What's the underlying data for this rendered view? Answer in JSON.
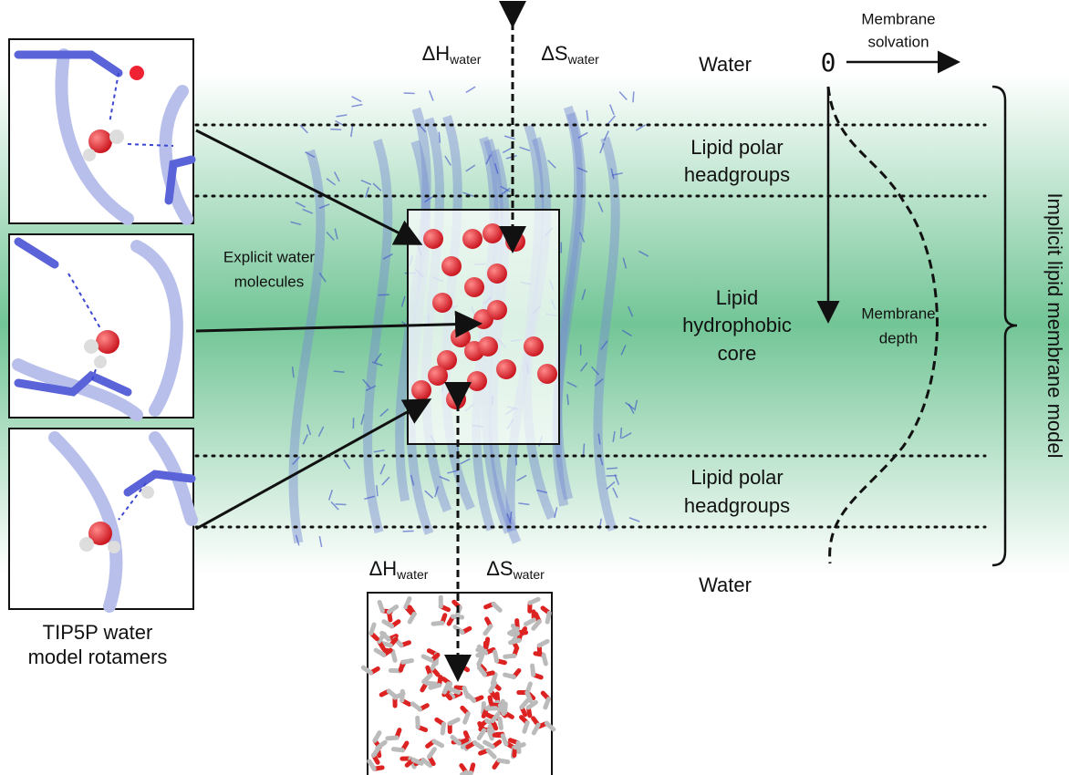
{
  "top": {
    "delta_h": "ΔH",
    "delta_h_sub": "water",
    "delta_s": "ΔS",
    "delta_s_sub": "water"
  },
  "bottom": {
    "delta_h": "ΔH",
    "delta_h_sub": "water",
    "delta_s": "ΔS",
    "delta_s_sub": "water"
  },
  "regions": {
    "water_top": "Water",
    "headgroups_top": [
      "Lipid polar",
      "headgroups"
    ],
    "core": [
      "Lipid",
      "hydrophobic",
      "core"
    ],
    "headgroups_bottom": [
      "Lipid polar",
      "headgroups"
    ],
    "water_bottom": "Water"
  },
  "axis": {
    "origin": "0",
    "solvation": [
      "Membrane",
      "solvation"
    ],
    "depth": [
      "Membrane",
      "depth"
    ]
  },
  "model_label": "Implicit lipid membrane model",
  "explicit_label": [
    "Explicit water",
    "molecules"
  ],
  "rotamer_caption": [
    "TIP5P water",
    "model rotamers"
  ]
}
